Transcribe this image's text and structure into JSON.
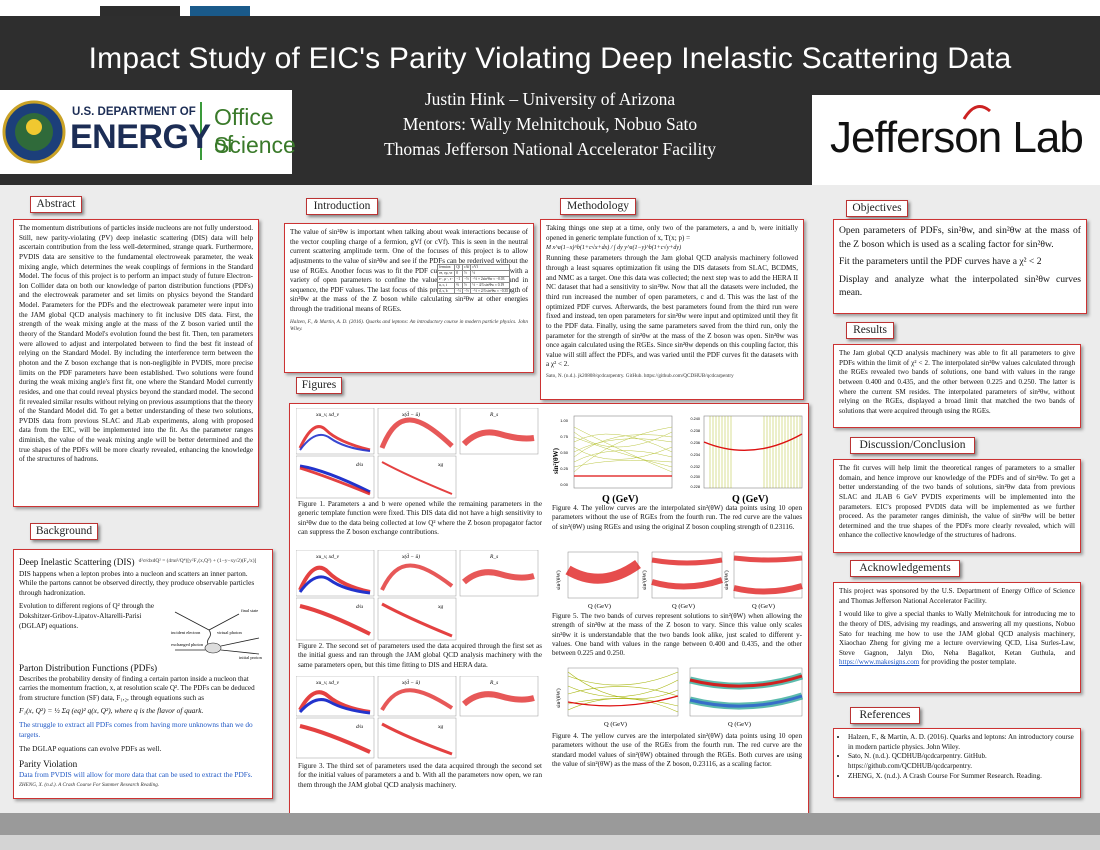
{
  "header": {
    "title": "Impact Study of EIC's Parity Violating Deep Inelastic Scattering Data",
    "author": "Justin Hink – University of Arizona",
    "mentors": "Mentors: Wally Melnitchouk, Nobuo Sato",
    "facility": "Thomas Jefferson National Accelerator Facility"
  },
  "logos": {
    "doe_line1": "U.S. DEPARTMENT OF",
    "doe_line2": "ENERGY",
    "doe_office1": "Office of",
    "doe_office2": "Science",
    "jlab": "Jefferson Lab"
  },
  "sections": {
    "abstract": "Abstract",
    "background": "Background",
    "introduction": "Introduction",
    "methodology": "Methodology",
    "figures": "Figures",
    "objectives": "Objectives",
    "results": "Results",
    "discussion": "Discussion/Conclusion",
    "acknowledgements": "Acknowledgements",
    "references": "References"
  },
  "abstract_text": "The momentum distributions of particles inside nucleons are not fully understood. Still, new parity-violating (PV) deep inelastic scattering (DIS) data will help ascertain contribution from the less well-determined, strange quark. Furthermore, PVDIS data are sensitive to the fundamental electroweak parameter, the weak mixing angle, which determines the weak couplings of fermions in the Standard Model. The focus of this project is to perform an impact study of future Electron-Ion Collider data on both our knowledge of parton distribution functions (PDFs) and the electroweak parameter and set limits on physics beyond the Standard Model. Parameters for the PDFs and the electroweak parameter were input into the JAM global QCD analysis machinery to fit inclusive DIS data. First, the strength of the weak mixing angle at the mass of the Z boson varied until the theory of the Standard Model's evolution found the best fit. Then, ten parameters were allowed to adjust and interpolated between to find the best fit instead of relying on the Standard Model. By including the interference term between the photon and the Z boson exchange that is non-negligible in PVDIS, more precise limits on the PDF parameters have been established. Two solutions were found during the weak mixing angle's first fit, one where the Standard Model currently resides, and one that could reveal physics beyond the standard model. The second fit revealed similar results without relying on previous assumptions that the theory of the Standard Model did. To get a better understanding of these two solutions, PVDIS data from previous SLAC and JLab experiments, along with proposed data from the EIC, will be implemented into the fit. As the parameter ranges diminish, the value of the weak mixing angle will be better determined and the true shapes of the PDFs will be more clearly revealed, enhancing the knowledge of the structures of hadrons.",
  "background": {
    "dis_title": "Deep Inelastic Scattering (DIS)",
    "dis_eq": "d²σ/dxdQ² = (4πα²/Q⁴)[y²F₁(x,Q²) + (1−y−xy/2)(F₂/x)]",
    "dis_text": "DIS happens when a lepton probes into a nucleon and scatters an inner parton. While the partons cannot be observed directly, they produce observable particles through hadronization.",
    "dglap_text": "Evolution to different regions of Q² through the Dokshitzer-Gribov-Lipatov-Altarelli-Parisi (DGLAP) equations.",
    "pdf_title": "Parton Distribution Functions (PDFs)",
    "pdf_text1": "Describes the probability density of finding a certain parton inside a nucleon that carries the momentum fraction, x, at resolution scale Q². The PDFs can be deduced from structure function (SF) data, F₁,₂, through equations such as",
    "pdf_eq": "F₁(x, Q²) = ½ Σq (eq)² q(x, Q²), where q is the flavor of quark.",
    "pdf_blue": "The struggle to extract all PDFs comes from having more unknowns than we do targets.",
    "dglap_note": "The DGLAP equations can evolve PDFs as well.",
    "pv_title": "Parity Violation",
    "pv_blue": "Data from PVDIS will allow for more data that can be used to extract the PDFs.",
    "ref": "ZHENG, X. (n.d.). A Crash Course For Summer Research Reading.",
    "diagram_labels": {
      "incident": "incident electron",
      "virtual": "virtual photon",
      "exchanged": "exchanged photon",
      "final": "final state",
      "initial": "initial proton"
    }
  },
  "intro": {
    "text": "The value of sin²θw is important when talking about weak interactions because of the vector coupling charge of a fermion, gVf (or cVf). This is seen in the neutral current scattering amplitude term. One of the focuses of this project is to allow adjustments to the value of sin²θw and see if the PDFs can be rederived without the use of RGEs. Another focus was to fit the PDF curves to multiple datasets with a variety of open parameters to confine the values of these parameters, and in sequence, the PDF values. The last focus of this project was to vary the strength of sin²θw at the mass of the Z boson while calculating sin²θw at other energies through the traditional means of RGEs.",
    "ref": "Halzen, F., & Martin, A. D. (2016). Quarks and leptons: An introductory course in modern particle physics. John Wiley.",
    "table_header": [
      "fermion",
      "Qf",
      "cAf",
      "cVf"
    ],
    "table_rows": [
      [
        "νe, νμ, ντ",
        "0",
        "½",
        "½"
      ],
      [
        "e⁻, μ⁻, τ⁻",
        "−1",
        "−½",
        "−½ + 2sin²θw ≈ −0.03"
      ],
      [
        "u, c, t",
        "⅔",
        "½",
        "½ − 4/3 sin²θw ≈ 0.19"
      ],
      [
        "d, s, b",
        "−⅓",
        "−½",
        "−½ + 2/3 sin²θw ≈ −0.35"
      ]
    ]
  },
  "methodology": {
    "text1": "Taking things one step at a time, only two of the parameters, a and b, were initially opened in generic template function of x, T(x; p) =",
    "text2": "Running these parameters through the Jam global QCD analysis machinery followed through a least squares optimization fit using the DIS datasets from SLAC, BCDMS, and NMC as a target. One this data was collected; the next step was to add the HERA II NC dataset that had a sensitivity to sin²θw. Now that all the datasets were included, the third run increased the number of open parameters, c and d. This was the last of the optimized PDF curves. Afterwards, the best parameters found from the third run were fixed and instead, ten open parameters for sin²θw were input and optimized until they fit to the PDF data. Finally, using the same parameters saved from the third run, only the parameter for the strength of sin²θw at the mass of the Z boson was open. Sin²θw was once again calculated using the RGEs. Since sin²θw depends on this coupling factor, this value will still affect the PDFs, and was varied until the PDF curves fit the datasets with a χ² < 2.",
    "formula": "M x^a(1−x)^b(1+c√x+dx) / ∫ dy y^a(1−y)^b(1+c√y+dy)",
    "ref": "Sato, N. (n.d.). jk20808/qcdcarpentry. GitHub. https://github.com/QCDHUB/qcdcarpentry"
  },
  "objectives": {
    "line1": "Open parameters of PDFs, sin²θw, and sin²θw at the mass of the Z boson which is used as a scaling factor for sin²θw.",
    "line2": "Fit the parameters until the PDF curves have a χ² < 2",
    "line3": "Display and analyze what the interpolated sin²θw curves mean."
  },
  "results_text": "The Jam global QCD analysis machinery was able to fit all parameters to give PDFs within the limit of χ² < 2. The interpolated sin²θw values calculated through the RGEs revealed two bands of solutions, one band with values in the range between 0.400 and 0.435, and the other between 0.225 and 0.250. The latter is where the current SM resides. The interpolated parameters of sin²θw, without relying on the RGEs, displayed a broad limit that matched the two bands of solutions that were acquired through using the RGEs.",
  "discussion_text": "The fit curves will help limit the theoretical ranges of parameters to a smaller domain, and hence improve our knowledge of the PDFs and of sin²θw. To get a better understanding of the two bands of solutions, sin²θw data from previous SLAC and JLAB 6 GeV PVDIS experiments will be implemented into the parameters. EIC's proposed PVDIS data will be implemented as we further proceed. As the parameter ranges diminish, the value of sin²θw will be better determined and the true shapes of the PDFs more clearly revealed, which will enhance the collective knowledge of the structures of hadrons.",
  "ack": {
    "p1": "This project was sponsored by the U.S. Department of Energy Office of Science and Thomas Jefferson National Accelerator Facility.",
    "p2": "I would like to give a special thanks to Wally Melnitchouk for introducing me to the theory of DIS, advising my readings, and answering all my questions, Nobuo Sato for teaching me how to use the JAM global QCD analysis machinery, Xiaochao Zheng for giving me a lecture overviewing QCD, Lisa Surles-Law, Steve Gagnon, Jalyn Dio, Neha Bagalkot, Ketan Guthula, and",
    "link": "https://www.makesigns.com",
    "p2_end": "for providing the poster template."
  },
  "references": [
    "Halzen, F., & Martin, A. D. (2016). Quarks and leptons: An introductory course in modern particle physics. John Wiley.",
    "Sato, N. (n.d.). QCDHUB/qcdcarpentry. GitHub. https://github.com/QCDHUB/qcdcarpentry.",
    "ZHENG, X. (n.d.). A Crash Course For Summer Research. Reading."
  ],
  "figures": {
    "cap1": "Figure 1. Parameters a and b were opened while the remaining parameters in the generic template function were fixed. This DIS data did not have a high sensitivity to sin²θw due to the data being collected at low Q² where the Z boson propagator factor can suppress the Z boson exchange contributions.",
    "cap2": "Figure 2. The second set of parameters used the data acquired through the first set as the initial guess and ran through the JAM global QCD analysis machinery with the same parameters open, but this time fitting to DIS and HERA data.",
    "cap3": "Figure 3. The third set of parameters used the data acquired through the second set for the initial values of parameters a and b. With all the parameters now open, we ran them through the JAM global QCD analysis machinery.",
    "cap4": "Figure 4. The yellow curves are the interpolated sin²(θW) data points using 10 open parameters without the use of RGEs from the fourth run. The red curve are the values of sin²(θW) using RGEs and using the original Z boson coupling strength of 0.23116.",
    "cap5": "Figure 5. The two bands of curves represent solutions to sin²(θW) when allowing the strength of sin²θw at the mass of the Z boson to vary. Since this value only scales sin²θw it is understandable that the two bands look alike, just scaled to different y-values. One band with values in the range between 0.400 and 0.435, and the other between 0.225 and 0.250.",
    "cap6": "Figure 4. The yellow curves are the interpolated sin²(θW) data points using 10 open parameters without the use of the RGEs from the fourth run. The red curve are the standard model values of sin²(θW) obtained through the RGEs. Both curves are using the value of sin²(θW) as the mass of the Z boson, 0.23116, as a scaling factor.",
    "panel_labels": [
      "xu_v, xd_v",
      "x(d̄ − ū)",
      "R_s",
      "d/u",
      "xg"
    ],
    "q_label": "Q (GeV)",
    "sin_label": "sin²(θW)",
    "fig4_yticks_left": [
      "1.00",
      "0.75",
      "0.50",
      "0.25",
      "0.00"
    ],
    "fig4_yticks_right": [
      "0.240",
      "0.238",
      "0.236",
      "0.234",
      "0.232",
      "0.230",
      "0.228"
    ]
  },
  "colors": {
    "header_bg": "#2e2e2e",
    "accent_red": "#cc3333",
    "link_blue": "#1f57c4",
    "doe_green": "#3a9a3a"
  }
}
